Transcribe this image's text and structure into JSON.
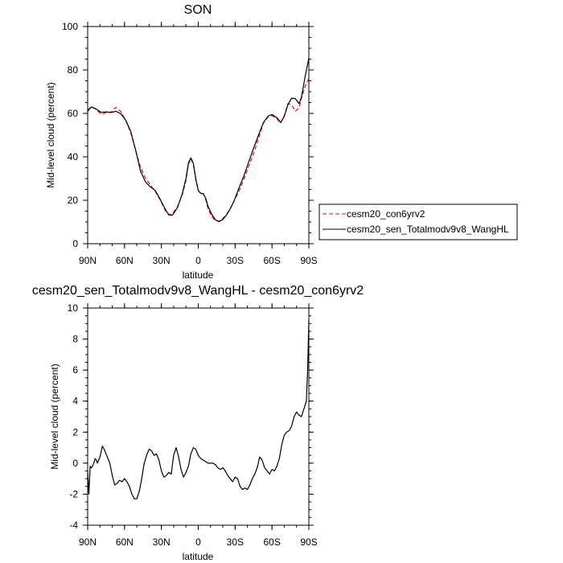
{
  "chart_data": [
    {
      "type": "line",
      "title": "SON",
      "xlabel": "latitude",
      "ylabel": "Mid-level cloud (percent)",
      "xlim": [
        90,
        -90
      ],
      "ylim": [
        0,
        100
      ],
      "xticks": [
        {
          "value": 90,
          "label": "90N"
        },
        {
          "value": 60,
          "label": "60N"
        },
        {
          "value": 30,
          "label": "30N"
        },
        {
          "value": 0,
          "label": "0"
        },
        {
          "value": -30,
          "label": "30S"
        },
        {
          "value": -60,
          "label": "60S"
        },
        {
          "value": -90,
          "label": "90S"
        }
      ],
      "yticks": [
        0,
        20,
        40,
        60,
        80,
        100
      ],
      "legend_placement": "outside right",
      "series": [
        {
          "name": "cesm20_con6yrv2",
          "color": "#ff0000",
          "dash": "dashed",
          "x": [
            90,
            87,
            83,
            79,
            75,
            71,
            67,
            63,
            59,
            55,
            51,
            47,
            43,
            39,
            35,
            31,
            27,
            24,
            21,
            17,
            13,
            10,
            8,
            6,
            4,
            2,
            0,
            -2,
            -4,
            -6,
            -8,
            -11,
            -14,
            -17,
            -20,
            -23,
            -26,
            -29,
            -33,
            -37,
            -41,
            -45,
            -49,
            -53,
            -57,
            -60,
            -64,
            -67,
            -70,
            -73,
            -76,
            -79,
            -82,
            -84,
            -87,
            -90
          ],
          "values": [
            61.5,
            63.2,
            61.8,
            59.6,
            60.4,
            60.6,
            62.8,
            60.8,
            56.6,
            51.2,
            43,
            35.2,
            30.2,
            27.2,
            24,
            20.2,
            15.4,
            13.4,
            13.8,
            17,
            22.5,
            29,
            36.5,
            39.2,
            36.5,
            29.5,
            24.5,
            23,
            23.2,
            20.5,
            16,
            12.5,
            10.5,
            10.4,
            11.6,
            13.5,
            16.2,
            19.5,
            24,
            29.5,
            35.5,
            41.5,
            48.5,
            55.5,
            58.5,
            59,
            57.5,
            55.5,
            59,
            64.5,
            64,
            61,
            62.5,
            67,
            72.5,
            76
          ]
        },
        {
          "name": "cesm20_sen_Totalmodv9v8_WangHL",
          "color": "#000000",
          "dash": "solid",
          "x": [
            90,
            87,
            83,
            79,
            75,
            71,
            67,
            63,
            59,
            55,
            51,
            47,
            43,
            39,
            35,
            31,
            27,
            24,
            21,
            17,
            13,
            10,
            8,
            6,
            4,
            2,
            0,
            -2,
            -4,
            -6,
            -8,
            -11,
            -14,
            -17,
            -20,
            -23,
            -26,
            -29,
            -33,
            -37,
            -41,
            -45,
            -49,
            -53,
            -57,
            -60,
            -64,
            -67,
            -70,
            -73,
            -76,
            -79,
            -82,
            -84,
            -87,
            -90
          ],
          "values": [
            61,
            63,
            62,
            60.5,
            60.7,
            60.4,
            61,
            59.8,
            56.8,
            51.8,
            43.2,
            33.5,
            28.5,
            26.2,
            24.5,
            20.5,
            16,
            13.3,
            13.1,
            16.5,
            23,
            30,
            37.2,
            39.5,
            37,
            30,
            24.5,
            23.2,
            23,
            21,
            17.2,
            13.5,
            11,
            10.2,
            11.2,
            13.2,
            16,
            19.5,
            25.5,
            31,
            37.5,
            44,
            50,
            55.8,
            58.8,
            59.5,
            58,
            55.8,
            58.6,
            64,
            67,
            66.8,
            64.5,
            67.5,
            77,
            85.5
          ]
        }
      ]
    },
    {
      "type": "line",
      "title": "cesm20_sen_Totalmodv9v8_WangHL - cesm20_con6yrv2",
      "xlabel": "latitude",
      "ylabel": "Mid-level cloud (percent)",
      "xlim": [
        90,
        -90
      ],
      "ylim": [
        -4,
        10
      ],
      "xticks": [
        {
          "value": 90,
          "label": "90N"
        },
        {
          "value": 60,
          "label": "60N"
        },
        {
          "value": 30,
          "label": "30N"
        },
        {
          "value": 0,
          "label": "0"
        },
        {
          "value": -30,
          "label": "30S"
        },
        {
          "value": -60,
          "label": "60S"
        },
        {
          "value": -90,
          "label": "90S"
        }
      ],
      "yticks": [
        -4,
        -2,
        0,
        2,
        4,
        6,
        8,
        10
      ],
      "series": [
        {
          "color": "#000000",
          "dash": "solid",
          "x": [
            90,
            89,
            88,
            87,
            86,
            85,
            84,
            83,
            82,
            80,
            78,
            76,
            74,
            72,
            70,
            68,
            66,
            64,
            62,
            60,
            58,
            56,
            54,
            52,
            50,
            48,
            46,
            44,
            42,
            40,
            38,
            36,
            34,
            32,
            30,
            28,
            26,
            24,
            22,
            20,
            18,
            16,
            14,
            12,
            10,
            8,
            6,
            4,
            2,
            0,
            -2,
            -4,
            -6,
            -8,
            -10,
            -12,
            -14,
            -16,
            -18,
            -20,
            -22,
            -24,
            -26,
            -28,
            -30,
            -32,
            -34,
            -36,
            -38,
            -40,
            -42,
            -44,
            -46,
            -48,
            -50,
            -52,
            -54,
            -56,
            -58,
            -60,
            -62,
            -64,
            -66,
            -68,
            -70,
            -72,
            -74,
            -76,
            -78,
            -80,
            -82,
            -84,
            -86,
            -88,
            -89,
            -90
          ],
          "values": [
            -0.5,
            -2,
            -0.2,
            -0.3,
            -0.2,
            0,
            0.3,
            0.2,
            0,
            0.4,
            1.1,
            0.8,
            0.4,
            0,
            -0.8,
            -1.4,
            -1.3,
            -1.1,
            -1.2,
            -1.0,
            -1.2,
            -1.5,
            -2.0,
            -2.3,
            -2.3,
            -1.8,
            -1.0,
            0,
            0.5,
            0.9,
            0.8,
            0.5,
            0.6,
            0.2,
            -0.5,
            -0.9,
            -0.8,
            -0.6,
            -0.7,
            0.5,
            1.0,
            0.4,
            -0.4,
            -0.9,
            -0.6,
            -0.2,
            0.6,
            1.0,
            0.9,
            0.5,
            0.3,
            0.2,
            0.1,
            0,
            0,
            0,
            -0.1,
            -0.3,
            -0.4,
            -0.3,
            -0.5,
            -0.8,
            -1.0,
            -1.2,
            -0.9,
            -1.0,
            -1.5,
            -1.7,
            -1.6,
            -1.7,
            -1.4,
            -1.0,
            -0.7,
            -0.3,
            0.4,
            0.2,
            -0.3,
            -0.5,
            -0.7,
            -0.4,
            -0.5,
            -0.2,
            0.3,
            1.2,
            1.8,
            2.0,
            2.1,
            2.4,
            3.0,
            3.3,
            3.1,
            3.0,
            3.5,
            4.0,
            6.0,
            9.2
          ]
        }
      ]
    }
  ]
}
